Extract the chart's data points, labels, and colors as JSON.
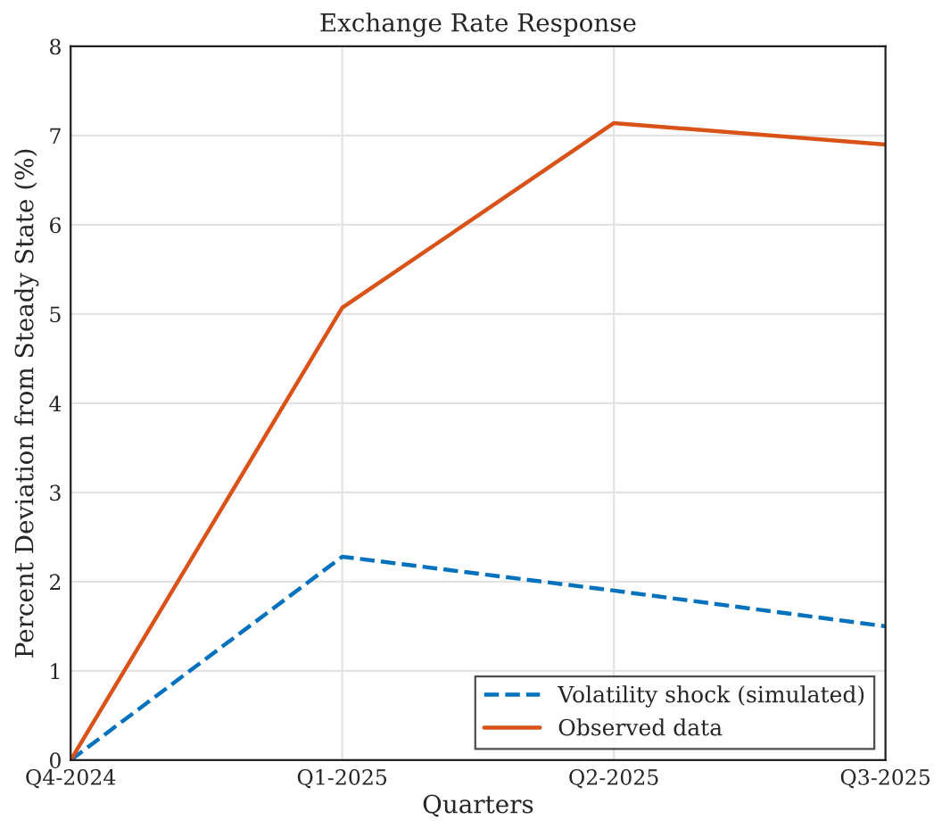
{
  "chart_data": {
    "type": "line",
    "title": "Exchange Rate Response",
    "xlabel": "Quarters",
    "ylabel": "Percent Deviation from Steady State (%)",
    "categories": [
      "Q4-2024",
      "Q1-2025",
      "Q2-2025",
      "Q3-2025"
    ],
    "series": [
      {
        "name": "Volatility shock (simulated)",
        "color": "#0072bd",
        "line_style": "dashed",
        "values": [
          0,
          2.28,
          1.9,
          1.5
        ]
      },
      {
        "name": "Observed data",
        "color": "#d95319",
        "line_style": "solid",
        "values": [
          0,
          5.07,
          7.14,
          6.9
        ]
      }
    ],
    "ylim": [
      0,
      8
    ],
    "yticks": [
      0,
      1,
      2,
      3,
      4,
      5,
      6,
      7,
      8
    ],
    "grid": true,
    "legend": "bottom right",
    "marker": "none"
  }
}
